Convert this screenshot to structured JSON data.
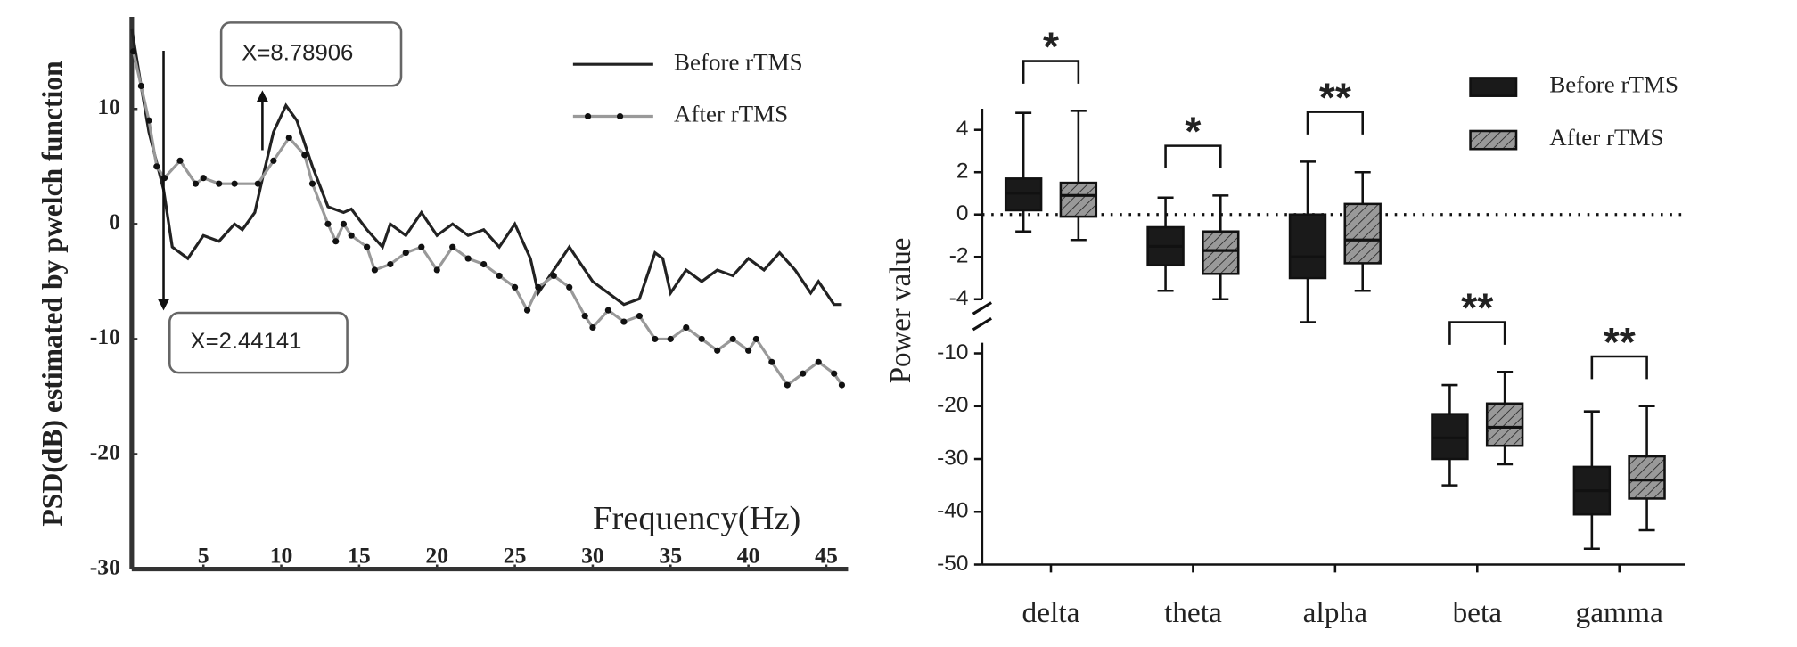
{
  "chart_data": [
    {
      "type": "line",
      "y_label": "PSD(dB) estimated by pwelch function",
      "x_label": "Frequency(Hz)",
      "xlim": [
        0.4,
        46.4
      ],
      "xticks": [
        5,
        10,
        15,
        20,
        25,
        30,
        35,
        40,
        45
      ],
      "ylim": [
        -30,
        18
      ],
      "yticks": [
        -30,
        -20,
        -10,
        0,
        10
      ],
      "legend": "top-right",
      "annotations": [
        {
          "text": "X=8.78906",
          "x": 8.78906
        },
        {
          "text": "X=2.44141",
          "x": 2.44141
        }
      ],
      "series": [
        {
          "name": "Before rTMS",
          "color": "#222222",
          "markers": false,
          "x": [
            0.4,
            1,
            1.5,
            2.44,
            3,
            4,
            5,
            6,
            7,
            7.5,
            8.3,
            8.8,
            9.5,
            10.3,
            11,
            12,
            13,
            14,
            14.5,
            15.5,
            16.5,
            17,
            18,
            19,
            20,
            21,
            22,
            23,
            24,
            25,
            26,
            26.5,
            27.5,
            28.5,
            29,
            30,
            31,
            32,
            33,
            34,
            34.5,
            35,
            36,
            37,
            38,
            39,
            40,
            41,
            42,
            43,
            44,
            44.5,
            45.5,
            46
          ],
          "values": [
            17,
            12,
            8,
            3,
            -2,
            -3,
            -1,
            -1.5,
            0,
            -0.5,
            1,
            4,
            8,
            10.3,
            9,
            5,
            1.5,
            1,
            1.3,
            -0.5,
            -2,
            0,
            -1,
            1,
            -1,
            0,
            -1,
            -0.5,
            -2,
            0,
            -3,
            -6,
            -4,
            -2,
            -3,
            -5,
            -6,
            -7,
            -6.5,
            -2.5,
            -3,
            -6,
            -4,
            -5,
            -4,
            -4.5,
            -3,
            -4,
            -2.5,
            -4,
            -6,
            -5,
            -7,
            -7
          ]
        },
        {
          "name": "After rTMS",
          "color": "#999999",
          "markers": true,
          "x": [
            0.5,
            1,
            1.5,
            2,
            2.5,
            3.5,
            4.5,
            5,
            6,
            7,
            8.5,
            9.5,
            10.5,
            11.5,
            12,
            13,
            13.5,
            14,
            14.5,
            15.5,
            16,
            17,
            18,
            19,
            20,
            21,
            22,
            23,
            24,
            25,
            25.8,
            26.5,
            27.5,
            28.5,
            29.5,
            30,
            31,
            32,
            33,
            34,
            35,
            36,
            37,
            38,
            39,
            40,
            40.5,
            41.5,
            42.5,
            43.5,
            44.5,
            45.5,
            46
          ],
          "values": [
            15,
            12,
            9,
            5,
            4,
            5.5,
            3.5,
            4,
            3.5,
            3.5,
            3.5,
            5.5,
            7.5,
            6,
            3.5,
            0,
            -1.5,
            0,
            -1,
            -2,
            -4,
            -3.5,
            -2.5,
            -2,
            -4,
            -2,
            -3,
            -3.5,
            -4.5,
            -5.5,
            -7.5,
            -5.5,
            -4.5,
            -5.5,
            -8,
            -9,
            -7.5,
            -8.5,
            -8,
            -10,
            -10,
            -9,
            -10,
            -11,
            -10,
            -11,
            -10,
            -12,
            -14,
            -13,
            -12,
            -13,
            -14
          ]
        }
      ]
    },
    {
      "type": "box",
      "y_label": "Power value",
      "categories": [
        "delta",
        "theta",
        "alpha",
        "beta",
        "gamma"
      ],
      "ylim": [
        [
          -50,
          -8
        ],
        [
          -4,
          5
        ]
      ],
      "yticks": [
        -50,
        -40,
        -30,
        -20,
        -10,
        -4,
        -2,
        0,
        2,
        4
      ],
      "reference_line": 0,
      "significance": [
        "*",
        "*",
        "**",
        "**",
        "**"
      ],
      "legend": "top-right",
      "series": [
        {
          "name": "Before rTMS",
          "color": "#1a1a1a",
          "hatch": false,
          "values": [
            [
              -0.8,
              0.2,
              1,
              1.7,
              4.8
            ],
            [
              -3.6,
              -2.4,
              -1.5,
              -0.6,
              0.8
            ],
            [
              -4.1,
              -3,
              -2,
              0,
              2.5
            ],
            [
              -35,
              -30,
              -26,
              -21.5,
              -16
            ],
            [
              -47,
              -40.5,
              -36,
              -31.5,
              -21
            ]
          ]
        },
        {
          "name": "After rTMS",
          "color": "#999999",
          "hatch": true,
          "values": [
            [
              -1.2,
              -0.1,
              0.9,
              1.5,
              4.9
            ],
            [
              -4,
              -2.8,
              -1.7,
              -0.8,
              0.9
            ],
            [
              -3.6,
              -2.3,
              -1.2,
              0.5,
              2
            ],
            [
              -31,
              -27.5,
              -24,
              -19.5,
              -13.5
            ],
            [
              -43.5,
              -37.5,
              -34,
              -29.5,
              -20
            ]
          ]
        }
      ]
    }
  ]
}
